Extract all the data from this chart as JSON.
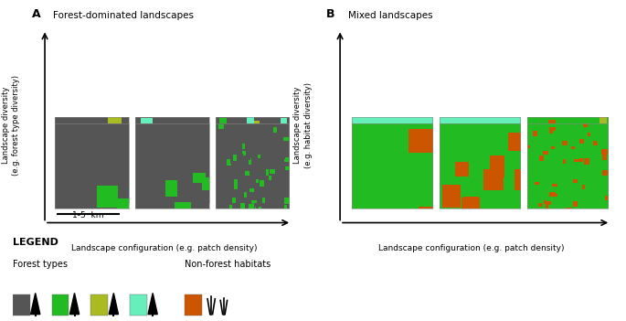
{
  "title_A": "Forest-dominated landscapes",
  "title_B": "Mixed landscapes",
  "label_A": "A",
  "label_B": "B",
  "ylabel_A_line1": "Landscape diversity",
  "ylabel_A_line2": "(e.g. forest type diversity)",
  "ylabel_B_line1": "Landscape diversity",
  "ylabel_B_line2": "(e.g. habitat diversity)",
  "xlabel": "Landscape configuration (e.g. patch density)",
  "scale_label": "1-5  km",
  "legend_title_forest": "Forest types",
  "legend_title_nonforest": "Non-forest habitats",
  "FD": "#555555",
  "FM": "#22bb22",
  "FY": "#aabb22",
  "FL": "#66eebb",
  "NO": "#cc5500",
  "background": "#ffffff"
}
